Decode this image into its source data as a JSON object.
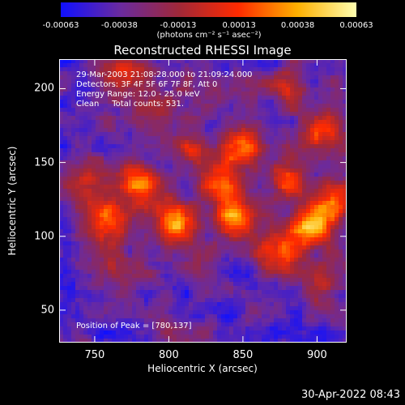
{
  "chart_data": {
    "type": "heatmap",
    "title": "Reconstructed RHESSI Image",
    "xlabel": "Heliocentric X (arcsec)",
    "ylabel": "Heliocentric Y (arcsec)",
    "xlim": [
      726,
      920
    ],
    "ylim": [
      28,
      220
    ],
    "x_ticks": [
      750,
      800,
      850,
      900
    ],
    "y_ticks": [
      50,
      100,
      150,
      200
    ],
    "colorbar": {
      "range": [
        -0.00063,
        0.00063
      ],
      "ticks": [
        -0.00063,
        -0.00038,
        -0.00013,
        0.00013,
        0.00038,
        0.00063
      ],
      "tick_labels": [
        "-0.00063",
        "-0.00038",
        "-0.00013",
        "0.00013",
        "0.00038",
        "0.00063"
      ],
      "units": "(photons cm⁻² s⁻¹ asec⁻²)",
      "colors": [
        "#1010ff",
        "#6a2aa0",
        "#a02838",
        "#ff2a00",
        "#ffb000",
        "#ffffb0"
      ]
    },
    "annotations": {
      "time_range": "29-Mar-2003 21:08:28.000 to 21:09:24.000",
      "detectors": "Detectors: 3F 4F 5F 6F 7F 8F, Att 0",
      "energy": "Energy Range: 12.0 - 25.0 keV",
      "clean": "Clean     Total counts: 531.",
      "peak": "Position of Peak = [780,137]"
    },
    "peak": [
      780,
      137
    ],
    "sources": [
      {
        "x": 780,
        "y": 137,
        "amp": 1.0
      },
      {
        "x": 758,
        "y": 112,
        "amp": 0.8
      },
      {
        "x": 805,
        "y": 108,
        "amp": 0.85
      },
      {
        "x": 845,
        "y": 112,
        "amp": 0.9
      },
      {
        "x": 872,
        "y": 90,
        "amp": 0.85
      },
      {
        "x": 895,
        "y": 105,
        "amp": 0.95
      },
      {
        "x": 910,
        "y": 120,
        "amp": 0.8
      },
      {
        "x": 880,
        "y": 140,
        "amp": 0.7
      },
      {
        "x": 850,
        "y": 160,
        "amp": 0.7
      },
      {
        "x": 820,
        "y": 155,
        "amp": 0.55
      },
      {
        "x": 790,
        "y": 180,
        "amp": 0.45
      },
      {
        "x": 905,
        "y": 168,
        "amp": 0.6
      },
      {
        "x": 770,
        "y": 210,
        "amp": 0.45
      },
      {
        "x": 880,
        "y": 200,
        "amp": 0.4
      },
      {
        "x": 760,
        "y": 85,
        "amp": 0.35
      },
      {
        "x": 820,
        "y": 80,
        "amp": 0.4
      },
      {
        "x": 905,
        "y": 70,
        "amp": 0.45
      },
      {
        "x": 745,
        "y": 140,
        "amp": 0.45
      },
      {
        "x": 835,
        "y": 135,
        "amp": 0.55
      }
    ]
  },
  "footer": {
    "timestamp": "30-Apr-2022 08:43"
  }
}
